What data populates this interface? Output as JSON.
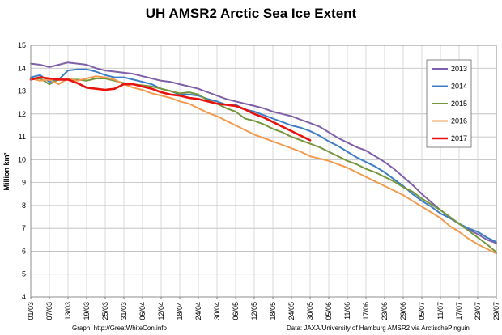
{
  "chart_data": {
    "type": "line",
    "title": "UH AMSR2 Arctic Sea Ice Extent",
    "ylabel": "Million km²",
    "xlabel": "",
    "ylim": [
      4,
      15
    ],
    "yticks": [
      4,
      5,
      6,
      7,
      8,
      9,
      10,
      11,
      12,
      13,
      14,
      15
    ],
    "xlim": [
      0,
      150
    ],
    "xtick_labels": [
      "01/03",
      "07/03",
      "13/03",
      "19/03",
      "25/03",
      "31/03",
      "06/04",
      "12/04",
      "18/04",
      "24/04",
      "30/04",
      "06/05",
      "12/05",
      "18/05",
      "24/05",
      "30/05",
      "05/06",
      "11/06",
      "17/06",
      "23/06",
      "29/06",
      "05/07",
      "11/07",
      "17/07",
      "23/07",
      "29/07"
    ],
    "xtick_positions": [
      0,
      6,
      12,
      18,
      24,
      30,
      36,
      42,
      48,
      54,
      60,
      66,
      72,
      78,
      84,
      90,
      96,
      102,
      108,
      114,
      120,
      126,
      132,
      138,
      144,
      150
    ],
    "grid": true,
    "legend_placement": "right",
    "series": [
      {
        "name": "2013",
        "color": "#7f5fa8",
        "x": [
          0,
          3,
          6,
          9,
          12,
          15,
          18,
          21,
          24,
          27,
          30,
          33,
          36,
          39,
          42,
          45,
          48,
          51,
          54,
          57,
          60,
          63,
          66,
          69,
          72,
          75,
          78,
          81,
          84,
          87,
          90,
          93,
          96,
          99,
          102,
          105,
          108,
          111,
          114,
          117,
          120,
          123,
          126,
          129,
          132,
          135,
          138,
          141,
          144,
          147,
          150
        ],
        "y": [
          14.2,
          14.15,
          14.05,
          14.15,
          14.25,
          14.2,
          14.15,
          14.0,
          13.9,
          13.85,
          13.8,
          13.75,
          13.65,
          13.55,
          13.45,
          13.4,
          13.3,
          13.2,
          13.1,
          12.95,
          12.8,
          12.65,
          12.55,
          12.45,
          12.35,
          12.25,
          12.1,
          12.0,
          11.9,
          11.75,
          11.6,
          11.45,
          11.2,
          10.95,
          10.75,
          10.55,
          10.4,
          10.15,
          9.9,
          9.6,
          9.25,
          8.9,
          8.5,
          8.15,
          7.8,
          7.5,
          7.2,
          6.95,
          6.75,
          6.5,
          6.35
        ]
      },
      {
        "name": "2014",
        "color": "#3c7dc4",
        "x": [
          0,
          3,
          6,
          9,
          12,
          15,
          18,
          21,
          24,
          27,
          30,
          33,
          36,
          39,
          42,
          45,
          48,
          51,
          54,
          57,
          60,
          63,
          66,
          69,
          72,
          75,
          78,
          81,
          84,
          87,
          90,
          93,
          96,
          99,
          102,
          105,
          108,
          111,
          114,
          117,
          120,
          123,
          126,
          129,
          132,
          135,
          138,
          141,
          144,
          147,
          150
        ],
        "y": [
          13.6,
          13.7,
          13.4,
          13.5,
          13.9,
          13.95,
          13.95,
          13.85,
          13.7,
          13.6,
          13.6,
          13.5,
          13.4,
          13.3,
          13.1,
          13.0,
          12.85,
          12.85,
          12.8,
          12.65,
          12.55,
          12.4,
          12.4,
          12.2,
          12.1,
          11.95,
          11.8,
          11.65,
          11.5,
          11.4,
          11.25,
          11.05,
          10.8,
          10.6,
          10.35,
          10.1,
          9.9,
          9.7,
          9.45,
          9.15,
          8.85,
          8.5,
          8.2,
          7.95,
          7.65,
          7.45,
          7.2,
          7.0,
          6.85,
          6.6,
          6.4
        ]
      },
      {
        "name": "2015",
        "color": "#77963b",
        "x": [
          0,
          3,
          6,
          9,
          12,
          15,
          18,
          21,
          24,
          27,
          30,
          33,
          36,
          39,
          42,
          45,
          48,
          51,
          54,
          57,
          60,
          63,
          66,
          69,
          72,
          75,
          78,
          81,
          84,
          87,
          90,
          93,
          96,
          99,
          102,
          105,
          108,
          111,
          114,
          117,
          120,
          123,
          126,
          129,
          132,
          135,
          138,
          141,
          144,
          147,
          150
        ],
        "y": [
          13.5,
          13.55,
          13.3,
          13.5,
          13.5,
          13.5,
          13.45,
          13.55,
          13.55,
          13.45,
          13.35,
          13.3,
          13.25,
          13.2,
          13.1,
          13.0,
          12.9,
          12.95,
          12.85,
          12.6,
          12.45,
          12.25,
          12.1,
          11.8,
          11.7,
          11.55,
          11.35,
          11.2,
          11.0,
          10.85,
          10.7,
          10.55,
          10.35,
          10.15,
          9.95,
          9.8,
          9.6,
          9.45,
          9.25,
          9.05,
          8.8,
          8.6,
          8.3,
          8.05,
          7.8,
          7.5,
          7.2,
          6.9,
          6.6,
          6.3,
          5.95
        ]
      },
      {
        "name": "2016",
        "color": "#f29b4f",
        "x": [
          0,
          3,
          6,
          9,
          12,
          15,
          18,
          21,
          24,
          27,
          30,
          33,
          36,
          39,
          42,
          45,
          48,
          51,
          54,
          57,
          60,
          63,
          66,
          69,
          72,
          75,
          78,
          81,
          84,
          87,
          90,
          93,
          96,
          99,
          102,
          105,
          108,
          111,
          114,
          117,
          120,
          123,
          126,
          129,
          132,
          135,
          138,
          141,
          144,
          147,
          150
        ],
        "y": [
          13.55,
          13.45,
          13.5,
          13.3,
          13.55,
          13.45,
          13.55,
          13.65,
          13.6,
          13.5,
          13.3,
          13.15,
          13.05,
          12.9,
          12.8,
          12.7,
          12.55,
          12.45,
          12.25,
          12.05,
          11.9,
          11.7,
          11.5,
          11.3,
          11.1,
          10.95,
          10.8,
          10.65,
          10.5,
          10.35,
          10.15,
          10.05,
          9.95,
          9.8,
          9.65,
          9.45,
          9.25,
          9.05,
          8.85,
          8.65,
          8.45,
          8.2,
          7.95,
          7.7,
          7.45,
          7.1,
          6.85,
          6.55,
          6.3,
          6.1,
          5.9
        ]
      },
      {
        "name": "2017",
        "color": "#e8130c",
        "x": [
          0,
          3,
          6,
          9,
          12,
          15,
          18,
          21,
          24,
          27,
          30,
          33,
          36,
          39,
          42,
          45,
          48,
          51,
          54,
          57,
          60,
          63,
          66,
          69,
          72,
          75,
          78,
          81,
          84,
          87,
          90
        ],
        "y": [
          13.5,
          13.6,
          13.55,
          13.5,
          13.5,
          13.35,
          13.15,
          13.1,
          13.05,
          13.1,
          13.3,
          13.3,
          13.2,
          13.1,
          12.95,
          12.85,
          12.8,
          12.7,
          12.65,
          12.55,
          12.45,
          12.4,
          12.35,
          12.2,
          12.0,
          11.85,
          11.65,
          11.45,
          11.25,
          11.05,
          10.85
        ]
      }
    ]
  },
  "footer": {
    "left": "Graph: http://GreatWhiteCon.info",
    "right": "Data: JAXA/University of Hamburg AMSR2 via ArctischePinguin"
  }
}
